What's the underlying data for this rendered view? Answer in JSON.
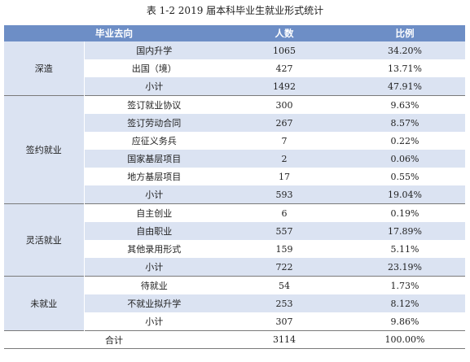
{
  "caption": "表 1-2   2019 届本科毕业生就业形式统计",
  "headers": [
    "毕业去向",
    "人数",
    "比例"
  ],
  "rows": [
    {
      "group": "深造",
      "item": "国内升学",
      "count": "1065",
      "ratio": "34.20%"
    },
    {
      "group": "",
      "item": "出国（境）",
      "count": "427",
      "ratio": "13.71%"
    },
    {
      "group": "",
      "item": "小计",
      "count": "1492",
      "ratio": "47.91%"
    },
    {
      "group": "签约就业",
      "item": "签订就业协议",
      "count": "300",
      "ratio": "9.63%"
    },
    {
      "group": "",
      "item": "签订劳动合同",
      "count": "267",
      "ratio": "8.57%"
    },
    {
      "group": "",
      "item": "应征义务兵",
      "count": "7",
      "ratio": "0.22%"
    },
    {
      "group": "",
      "item": "国家基层项目",
      "count": "2",
      "ratio": "0.06%"
    },
    {
      "group": "",
      "item": "地方基层项目",
      "count": "17",
      "ratio": "0.55%"
    },
    {
      "group": "",
      "item": "小计",
      "count": "593",
      "ratio": "19.04%"
    },
    {
      "group": "灵活就业",
      "item": "自主创业",
      "count": "6",
      "ratio": "0.19%"
    },
    {
      "group": "",
      "item": "自由职业",
      "count": "557",
      "ratio": "17.89%"
    },
    {
      "group": "",
      "item": "其他录用形式",
      "count": "159",
      "ratio": "5.11%"
    },
    {
      "group": "",
      "item": "小计",
      "count": "722",
      "ratio": "23.19%"
    },
    {
      "group": "未就业",
      "item": "待就业",
      "count": "54",
      "ratio": "1.73%"
    },
    {
      "group": "",
      "item": "不就业拟升学",
      "count": "253",
      "ratio": "8.12%"
    },
    {
      "group": "",
      "item": "小计",
      "count": "307",
      "ratio": "9.86%"
    }
  ],
  "total": {
    "label": "合计",
    "count": "3114",
    "ratio": "100.00%"
  }
}
